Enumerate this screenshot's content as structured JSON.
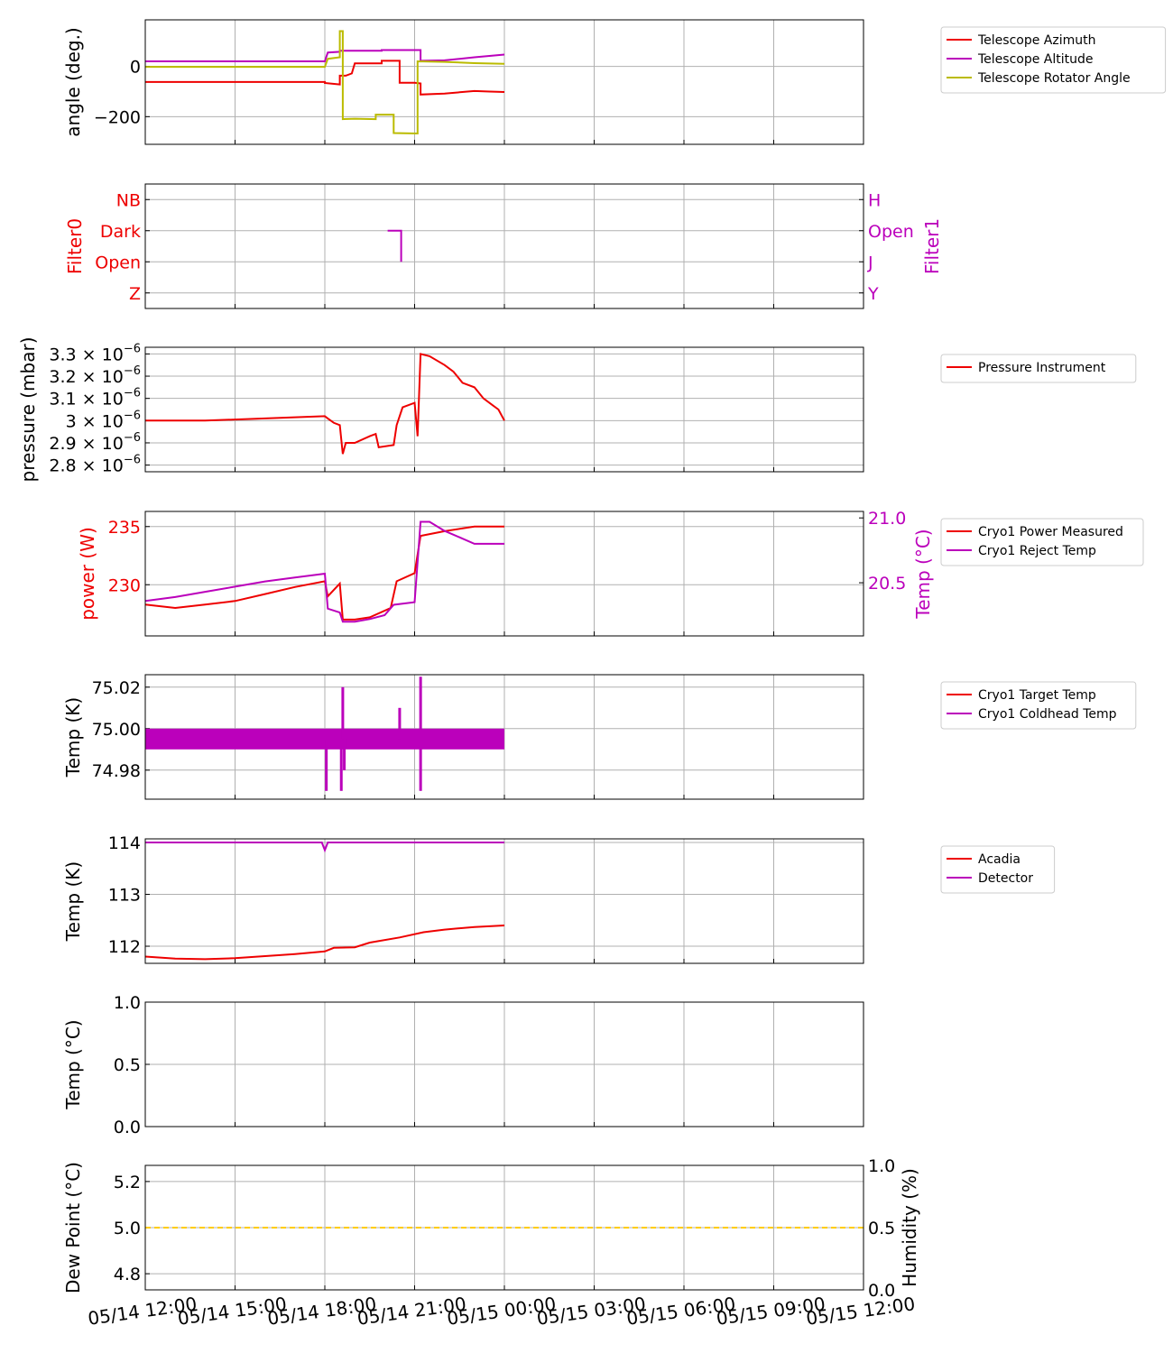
{
  "colors": {
    "red": "#ee0000",
    "magenta": "#bb00bb",
    "olive": "#bbbb00",
    "gold": "#ffcc00",
    "grid": "#b0b0b0"
  },
  "x_axis": {
    "tick_labels": [
      "05/14 12:00",
      "05/14 15:00",
      "05/14 18:00",
      "05/14 21:00",
      "05/15 00:00",
      "05/15 03:00",
      "05/15 06:00",
      "05/15 09:00",
      "05/15 12:00"
    ],
    "range_hours": [
      0,
      24
    ],
    "data_end_hour": 12
  },
  "chart_data": [
    {
      "type": "line",
      "ylabel": "angle (deg.)",
      "ylim": [
        -310,
        185
      ],
      "yticks": [
        {
          "v": 0,
          "label": "0"
        },
        {
          "v": -200,
          "label": "−200"
        }
      ],
      "legend": "right",
      "series": [
        {
          "name": "Telescope Azimuth",
          "color": "red",
          "points": [
            [
              0,
              -62
            ],
            [
              6,
              -62
            ],
            [
              6,
              -66
            ],
            [
              6.5,
              -72
            ],
            [
              6.5,
              -37
            ],
            [
              6.7,
              -37
            ],
            [
              6.9,
              -28
            ],
            [
              7.0,
              12
            ],
            [
              7.9,
              12
            ],
            [
              7.9,
              22
            ],
            [
              8.5,
              22
            ],
            [
              8.5,
              -65
            ],
            [
              9.0,
              -65
            ],
            [
              9.2,
              -68
            ],
            [
              9.2,
              -112
            ],
            [
              10,
              -108
            ],
            [
              10.5,
              -103
            ],
            [
              11,
              -98
            ],
            [
              11.5,
              -100
            ],
            [
              12,
              -102
            ]
          ]
        },
        {
          "name": "Telescope Altitude",
          "color": "magenta",
          "points": [
            [
              0,
              20
            ],
            [
              6,
              20
            ],
            [
              6.1,
              55
            ],
            [
              6.5,
              58
            ],
            [
              6.5,
              62
            ],
            [
              7.9,
              62
            ],
            [
              7.9,
              65
            ],
            [
              9.2,
              65
            ],
            [
              9.2,
              22
            ],
            [
              10,
              24
            ],
            [
              11,
              36
            ],
            [
              12,
              47
            ]
          ]
        },
        {
          "name": "Telescope Rotator Angle",
          "color": "olive",
          "points": [
            [
              0,
              -2
            ],
            [
              6,
              -2
            ],
            [
              6.1,
              30
            ],
            [
              6.5,
              36
            ],
            [
              6.5,
              140
            ],
            [
              6.6,
              140
            ],
            [
              6.6,
              -210
            ],
            [
              7.0,
              -208
            ],
            [
              7.7,
              -210
            ],
            [
              7.7,
              -192
            ],
            [
              8.3,
              -192
            ],
            [
              8.3,
              -265
            ],
            [
              9.1,
              -267
            ],
            [
              9.1,
              20
            ],
            [
              10,
              18
            ],
            [
              11,
              13
            ],
            [
              12,
              10
            ]
          ]
        }
      ]
    },
    {
      "type": "line",
      "ylabel": "Filter0",
      "ylabel_right": "Filter1",
      "ylim": [
        -0.5,
        3.5
      ],
      "yticks": [
        {
          "v": 3,
          "label": "NB"
        },
        {
          "v": 2,
          "label": "Dark"
        },
        {
          "v": 1,
          "label": "Open"
        },
        {
          "v": 0,
          "label": "Z"
        }
      ],
      "yticks_right": [
        {
          "v": 3,
          "label": "H"
        },
        {
          "v": 2,
          "label": "Open"
        },
        {
          "v": 1,
          "label": "J"
        },
        {
          "v": 0,
          "label": "Y"
        }
      ],
      "series": [
        {
          "name": "",
          "color": "magenta",
          "points": [
            [
              8.1,
              2
            ],
            [
              8.55,
              2
            ],
            [
              8.55,
              1
            ]
          ]
        }
      ]
    },
    {
      "type": "line",
      "ylabel": "pressure (mbar)",
      "ylim": [
        2.77,
        3.33
      ],
      "yticks": [
        {
          "v": 3.3,
          "label": "3.3 × 10",
          "exp": "−6"
        },
        {
          "v": 3.2,
          "label": "3.2 × 10",
          "exp": "−6"
        },
        {
          "v": 3.1,
          "label": "3.1 × 10",
          "exp": "−6"
        },
        {
          "v": 3.0,
          "label": "3 × 10",
          "exp": "−6"
        },
        {
          "v": 2.9,
          "label": "2.9 × 10",
          "exp": "−6"
        },
        {
          "v": 2.8,
          "label": "2.8 × 10",
          "exp": "−6"
        }
      ],
      "unit_note": "values ×1e-6",
      "legend": "right",
      "series": [
        {
          "name": "Pressure Instrument",
          "color": "red",
          "points": [
            [
              0,
              3.0
            ],
            [
              1,
              3.0
            ],
            [
              2,
              3.0
            ],
            [
              3,
              3.005
            ],
            [
              4,
              3.01
            ],
            [
              5,
              3.015
            ],
            [
              6,
              3.02
            ],
            [
              6.1,
              3.01
            ],
            [
              6.3,
              2.99
            ],
            [
              6.5,
              2.98
            ],
            [
              6.6,
              2.85
            ],
            [
              6.7,
              2.9
            ],
            [
              7.0,
              2.9
            ],
            [
              7.5,
              2.93
            ],
            [
              7.7,
              2.94
            ],
            [
              7.8,
              2.88
            ],
            [
              8.3,
              2.89
            ],
            [
              8.4,
              2.98
            ],
            [
              8.6,
              3.06
            ],
            [
              9.0,
              3.08
            ],
            [
              9.1,
              2.93
            ],
            [
              9.2,
              3.3
            ],
            [
              9.5,
              3.29
            ],
            [
              10,
              3.25
            ],
            [
              10.3,
              3.22
            ],
            [
              10.6,
              3.17
            ],
            [
              11,
              3.15
            ],
            [
              11.3,
              3.1
            ],
            [
              11.6,
              3.07
            ],
            [
              11.8,
              3.05
            ],
            [
              12,
              3.0
            ]
          ]
        }
      ]
    },
    {
      "type": "line",
      "ylabel": "power (W)",
      "ylabel_right": "Temp (°C)",
      "ylim": [
        225.6,
        236.3
      ],
      "ylim_right": [
        20.09,
        21.05
      ],
      "yticks": [
        {
          "v": 235,
          "label": "235"
        },
        {
          "v": 230,
          "label": "230"
        }
      ],
      "yticks_right": [
        {
          "v": 21.0,
          "label": "21.0"
        },
        {
          "v": 20.5,
          "label": "20.5"
        }
      ],
      "legend": "right",
      "series": [
        {
          "name": "Cryo1 Power Measured",
          "color": "red",
          "axis": "left",
          "points": [
            [
              0,
              228.3
            ],
            [
              1,
              228.0
            ],
            [
              2,
              228.3
            ],
            [
              3,
              228.6
            ],
            [
              4,
              229.2
            ],
            [
              5,
              229.8
            ],
            [
              6,
              230.3
            ],
            [
              6.1,
              229.0
            ],
            [
              6.5,
              230.1
            ],
            [
              6.6,
              227.0
            ],
            [
              7,
              227.0
            ],
            [
              7.5,
              227.2
            ],
            [
              8.2,
              228.0
            ],
            [
              8.4,
              230.3
            ],
            [
              9,
              231.0
            ],
            [
              9.2,
              234.2
            ],
            [
              10,
              234.6
            ],
            [
              11,
              235.0
            ],
            [
              12,
              235.0
            ]
          ]
        },
        {
          "name": "Cryo1 Reject Temp",
          "color": "magenta",
          "axis": "right",
          "points": [
            [
              0,
              20.36
            ],
            [
              1,
              20.39
            ],
            [
              2,
              20.43
            ],
            [
              3,
              20.47
            ],
            [
              4,
              20.51
            ],
            [
              5,
              20.54
            ],
            [
              6,
              20.57
            ],
            [
              6.1,
              20.3
            ],
            [
              6.5,
              20.27
            ],
            [
              6.6,
              20.2
            ],
            [
              7,
              20.2
            ],
            [
              7.5,
              20.22
            ],
            [
              8.0,
              20.25
            ],
            [
              8.3,
              20.33
            ],
            [
              9,
              20.35
            ],
            [
              9.2,
              20.97
            ],
            [
              9.5,
              20.97
            ],
            [
              10,
              20.9
            ],
            [
              10.5,
              20.85
            ],
            [
              11,
              20.8
            ],
            [
              12,
              20.8
            ]
          ]
        }
      ]
    },
    {
      "type": "line",
      "ylabel": "Temp (K)",
      "ylim": [
        74.966,
        75.026
      ],
      "yticks": [
        {
          "v": 75.02,
          "label": "75.02"
        },
        {
          "v": 75.0,
          "label": "75.00"
        },
        {
          "v": 74.98,
          "label": "74.98"
        }
      ],
      "legend": "right",
      "series": [
        {
          "name": "Cryo1 Target Temp",
          "color": "red",
          "points": [
            [
              0,
              74.995
            ],
            [
              12,
              74.995
            ]
          ]
        },
        {
          "name": "Cryo1 Coldhead Temp",
          "color": "magenta",
          "band": [
            74.99,
            75.0
          ],
          "points": [
            [
              0,
              74.995
            ],
            [
              12,
              74.995
            ]
          ],
          "spikes": [
            [
              6.05,
              74.97
            ],
            [
              6.55,
              74.97
            ],
            [
              6.6,
              75.02
            ],
            [
              6.65,
              74.98
            ],
            [
              8.5,
              75.01
            ],
            [
              9.2,
              75.025
            ],
            [
              9.2,
              74.97
            ]
          ]
        }
      ]
    },
    {
      "type": "line",
      "ylabel": "Temp (K)",
      "ylim": [
        111.67,
        114.07
      ],
      "yticks": [
        {
          "v": 114,
          "label": "114"
        },
        {
          "v": 113,
          "label": "113"
        },
        {
          "v": 112,
          "label": "112"
        }
      ],
      "legend": "right",
      "series": [
        {
          "name": "Acadia",
          "color": "red",
          "points": [
            [
              0,
              111.8
            ],
            [
              1,
              111.76
            ],
            [
              2,
              111.75
            ],
            [
              3,
              111.77
            ],
            [
              4,
              111.81
            ],
            [
              5,
              111.85
            ],
            [
              6,
              111.9
            ],
            [
              6.3,
              111.97
            ],
            [
              7,
              111.98
            ],
            [
              7.5,
              112.07
            ],
            [
              8.5,
              112.17
            ],
            [
              9.3,
              112.27
            ],
            [
              10,
              112.32
            ],
            [
              11,
              112.37
            ],
            [
              12,
              112.4
            ]
          ]
        },
        {
          "name": "Detector",
          "color": "magenta",
          "points": [
            [
              0,
              114
            ],
            [
              5.9,
              114
            ],
            [
              6.0,
              113.85
            ],
            [
              6.1,
              114
            ],
            [
              12,
              114
            ]
          ]
        }
      ]
    },
    {
      "type": "line",
      "ylabel": "Temp (°C)",
      "ylim": [
        0,
        1
      ],
      "yticks": [
        {
          "v": 1,
          "label": "1.0"
        },
        {
          "v": 0.5,
          "label": "0.5"
        },
        {
          "v": 0,
          "label": "0.0"
        }
      ],
      "series": []
    },
    {
      "type": "line",
      "ylabel": "Dew Point (°C)",
      "ylabel_right": "Humidity (%)",
      "ylim": [
        4.73,
        5.27
      ],
      "ylim_right": [
        0,
        1
      ],
      "yticks": [
        {
          "v": 5.2,
          "label": "5.2"
        },
        {
          "v": 5.0,
          "label": "5.0"
        },
        {
          "v": 4.8,
          "label": "4.8"
        }
      ],
      "yticks_right": [
        {
          "v": 1,
          "label": "1.0"
        },
        {
          "v": 0.5,
          "label": "0.5"
        },
        {
          "v": 0,
          "label": "0.0"
        }
      ],
      "series": [
        {
          "name": "",
          "color": "gold",
          "dashed": true,
          "points": [
            [
              0,
              5.0
            ],
            [
              24,
              5.0
            ]
          ]
        }
      ]
    }
  ]
}
